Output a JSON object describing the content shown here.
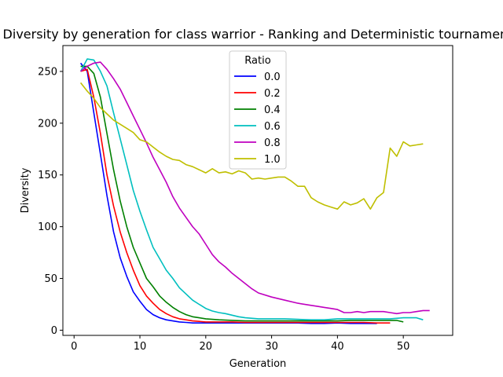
{
  "chart_data": {
    "type": "line",
    "title": "Diversity by generation for class warrior - Ranking and Deterministic tournament",
    "xlabel": "Generation",
    "ylabel": "Diversity",
    "xlim": [
      -1.7,
      57.5
    ],
    "ylim": [
      -5,
      275
    ],
    "xticks": [
      0,
      10,
      20,
      30,
      40,
      50
    ],
    "yticks": [
      0,
      50,
      100,
      150,
      200,
      250
    ],
    "grid": false,
    "legend": {
      "title": "Ratio",
      "placement": "top-center"
    },
    "series": [
      {
        "name": "0.0",
        "color": "#0000ff",
        "x": [
          1,
          2,
          3,
          4,
          5,
          6,
          7,
          8,
          9,
          10,
          11,
          12,
          13,
          14,
          15,
          16,
          17,
          18,
          19,
          20,
          22,
          24,
          26,
          28,
          30,
          32,
          34,
          36,
          38,
          40,
          42,
          44,
          46
        ],
        "y": [
          258,
          250,
          210,
          170,
          130,
          95,
          70,
          52,
          37,
          28,
          20,
          15,
          12,
          10,
          9,
          8,
          7.5,
          7,
          7,
          7,
          7,
          7,
          7,
          7,
          7,
          7,
          7,
          6.5,
          6.5,
          7,
          6.5,
          6.5,
          6.5
        ]
      },
      {
        "name": "0.2",
        "color": "#ff0000",
        "x": [
          1,
          2,
          3,
          4,
          5,
          6,
          7,
          8,
          9,
          10,
          11,
          12,
          13,
          14,
          15,
          16,
          17,
          18,
          19,
          20,
          22,
          24,
          26,
          28,
          30,
          32,
          34,
          36,
          38,
          40,
          42,
          44,
          46,
          48
        ],
        "y": [
          250,
          252,
          225,
          190,
          150,
          120,
          95,
          75,
          58,
          43,
          33,
          26,
          20,
          16,
          13,
          11,
          10,
          9,
          8.5,
          8,
          8,
          8,
          7.5,
          7.5,
          7.5,
          7.5,
          7.5,
          7.5,
          7.5,
          7.5,
          7.5,
          7.5,
          7,
          7
        ]
      },
      {
        "name": "0.4",
        "color": "#008000",
        "x": [
          1,
          2,
          3,
          4,
          5,
          6,
          7,
          8,
          9,
          10,
          11,
          12,
          13,
          14,
          15,
          16,
          17,
          18,
          19,
          20,
          22,
          24,
          26,
          28,
          30,
          32,
          34,
          36,
          38,
          40,
          42,
          44,
          46,
          48,
          49,
          50
        ],
        "y": [
          255,
          255,
          248,
          225,
          190,
          155,
          125,
          100,
          80,
          65,
          50,
          42,
          33,
          27,
          22,
          18,
          15,
          13,
          12,
          11,
          10,
          9.5,
          9,
          9,
          9,
          9,
          9,
          9,
          9,
          9,
          9.5,
          9.5,
          9.5,
          9.5,
          9.5,
          8
        ]
      },
      {
        "name": "0.6",
        "color": "#00bfbf",
        "x": [
          1,
          2,
          3,
          4,
          5,
          6,
          7,
          8,
          9,
          10,
          11,
          12,
          13,
          14,
          15,
          16,
          17,
          18,
          19,
          20,
          21,
          22,
          23,
          24,
          25,
          26,
          28,
          30,
          32,
          34,
          36,
          38,
          40,
          42,
          44,
          46,
          48,
          50,
          52,
          53
        ],
        "y": [
          250,
          262,
          261,
          250,
          236,
          210,
          185,
          160,
          135,
          115,
          97,
          80,
          69,
          58,
          50,
          41,
          35,
          29,
          25,
          21,
          18.5,
          17,
          16,
          14.5,
          13,
          12,
          11,
          11,
          11,
          10.5,
          10,
          10,
          11,
          11,
          11,
          11,
          11,
          12,
          12,
          10
        ]
      },
      {
        "name": "0.8",
        "color": "#bf00bf",
        "x": [
          1,
          2,
          3,
          4,
          5,
          6,
          7,
          8,
          9,
          10,
          11,
          12,
          13,
          14,
          15,
          16,
          17,
          18,
          19,
          20,
          21,
          22,
          23,
          24,
          25,
          26,
          27,
          28,
          30,
          32,
          34,
          36,
          37,
          38,
          39,
          40,
          41,
          42,
          43,
          44,
          45,
          46,
          47,
          48,
          49,
          50,
          51,
          52,
          53,
          54
        ],
        "y": [
          250,
          255,
          258,
          259,
          252,
          243,
          233,
          220,
          207,
          194,
          181,
          167,
          155,
          143,
          129,
          118,
          109,
          100,
          93,
          83,
          73,
          66,
          61,
          55,
          50,
          45,
          40,
          36,
          32,
          29,
          26,
          24,
          23,
          22,
          21,
          20,
          17,
          17,
          18,
          17,
          18,
          18,
          18,
          17,
          16,
          17,
          17,
          18,
          19,
          19
        ]
      },
      {
        "name": "1.0",
        "color": "#bfbf00",
        "x": [
          1,
          2,
          3,
          4,
          5,
          6,
          7,
          8,
          9,
          10,
          11,
          12,
          13,
          14,
          15,
          16,
          17,
          18,
          19,
          20,
          21,
          22,
          23,
          24,
          25,
          26,
          27,
          28,
          29,
          30,
          31,
          32,
          33,
          34,
          35,
          36,
          37,
          38,
          39,
          40,
          41,
          42,
          43,
          44,
          45,
          46,
          47,
          48,
          49,
          50,
          51,
          52,
          53
        ],
        "y": [
          239,
          231,
          224,
          215,
          209,
          203,
          199,
          195,
          191,
          184,
          182,
          177,
          172,
          168,
          165,
          164,
          160,
          158,
          155,
          152,
          156,
          152,
          153,
          151,
          154,
          152,
          146,
          147,
          146,
          147,
          148,
          148,
          144,
          139,
          139,
          128,
          124,
          121,
          119,
          117,
          124,
          121,
          123,
          127,
          117,
          128,
          133,
          176,
          168,
          182,
          178,
          179,
          180
        ]
      }
    ]
  }
}
